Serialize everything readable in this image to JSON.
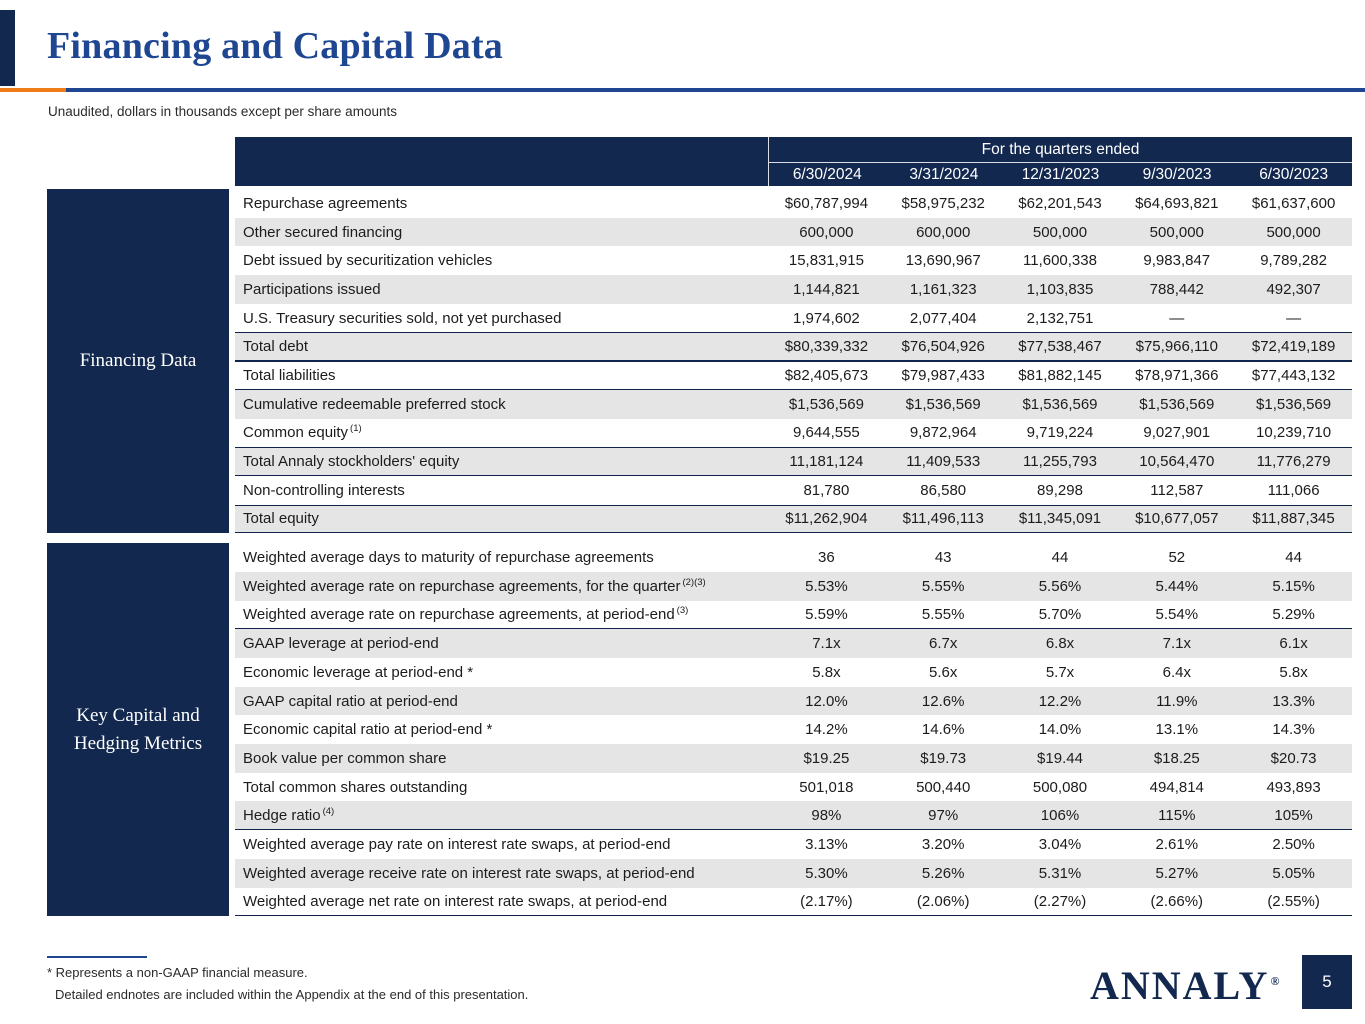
{
  "page": {
    "title": "Financing and Capital Data",
    "subtitle": "Unaudited, dollars in thousands except per share amounts"
  },
  "table": {
    "quarters_header": "For the quarters ended",
    "columns": [
      "6/30/2024",
      "3/31/2024",
      "12/31/2023",
      "9/30/2023",
      "6/30/2023"
    ],
    "sections": [
      {
        "label": "Financing Data",
        "rows": [
          {
            "label": "Repurchase agreements",
            "sup": "",
            "style": "",
            "values": [
              "$60,787,994",
              "$58,975,232",
              "$62,201,543",
              "$64,693,821",
              "$61,637,600"
            ]
          },
          {
            "label": "Other secured financing",
            "sup": "",
            "style": "",
            "values": [
              "600,000",
              "600,000",
              "500,000",
              "500,000",
              "500,000"
            ]
          },
          {
            "label": "Debt issued by securitization vehicles",
            "sup": "",
            "style": "",
            "values": [
              "15,831,915",
              "13,690,967",
              "11,600,338",
              "9,983,847",
              "9,789,282"
            ]
          },
          {
            "label": "Participations issued",
            "sup": "",
            "style": "",
            "values": [
              "1,144,821",
              "1,161,323",
              "1,103,835",
              "788,442",
              "492,307"
            ]
          },
          {
            "label": "U.S. Treasury securities sold, not yet purchased",
            "sup": "",
            "style": "",
            "values": [
              "1,974,602",
              "2,077,404",
              "2,132,751",
              "—",
              "—"
            ]
          },
          {
            "label": "Total debt",
            "sup": "",
            "style": "total",
            "values": [
              "$80,339,332",
              "$76,504,926",
              "$77,538,467",
              "$75,966,110",
              "$72,419,189"
            ]
          },
          {
            "label": "Total liabilities",
            "sup": "",
            "style": "total",
            "values": [
              "$82,405,673",
              "$79,987,433",
              "$81,882,145",
              "$78,971,366",
              "$77,443,132"
            ]
          },
          {
            "label": "Cumulative redeemable preferred stock",
            "sup": "",
            "style": "",
            "values": [
              "$1,536,569",
              "$1,536,569",
              "$1,536,569",
              "$1,536,569",
              "$1,536,569"
            ]
          },
          {
            "label": "Common equity",
            "sup": "(1)",
            "style": "",
            "values": [
              "9,644,555",
              "9,872,964",
              "9,719,224",
              "9,027,901",
              "10,239,710"
            ]
          },
          {
            "label": "Total Annaly stockholders' equity",
            "sup": "",
            "style": "total",
            "values": [
              "11,181,124",
              "11,409,533",
              "11,255,793",
              "10,564,470",
              "11,776,279"
            ]
          },
          {
            "label": "Non-controlling interests",
            "sup": "",
            "style": "",
            "values": [
              "81,780",
              "86,580",
              "89,298",
              "112,587",
              "111,066"
            ]
          },
          {
            "label": "Total equity",
            "sup": "",
            "style": "total",
            "values": [
              "$11,262,904",
              "$11,496,113",
              "$11,345,091",
              "$10,677,057",
              "$11,887,345"
            ]
          }
        ]
      },
      {
        "label": "Key Capital and Hedging Metrics",
        "rows": [
          {
            "label": "Weighted average days to maturity of repurchase agreements",
            "sup": "",
            "style": "",
            "values": [
              "36",
              "43",
              "44",
              "52",
              "44"
            ]
          },
          {
            "label": "Weighted average rate on repurchase agreements, for the quarter",
            "sup": "(2)(3)",
            "style": "",
            "values": [
              "5.53%",
              "5.55%",
              "5.56%",
              "5.44%",
              "5.15%"
            ]
          },
          {
            "label": "Weighted average rate on repurchase agreements, at period-end",
            "sup": "(3)",
            "style": "underline",
            "values": [
              "5.59%",
              "5.55%",
              "5.70%",
              "5.54%",
              "5.29%"
            ]
          },
          {
            "label": "GAAP leverage at period-end",
            "sup": "",
            "style": "",
            "values": [
              "7.1x",
              "6.7x",
              "6.8x",
              "7.1x",
              "6.1x"
            ]
          },
          {
            "label": "Economic leverage at period-end *",
            "sup": "",
            "style": "",
            "values": [
              "5.8x",
              "5.6x",
              "5.7x",
              "6.4x",
              "5.8x"
            ]
          },
          {
            "label": "GAAP capital ratio at period-end",
            "sup": "",
            "style": "",
            "values": [
              "12.0%",
              "12.6%",
              "12.2%",
              "11.9%",
              "13.3%"
            ]
          },
          {
            "label": "Economic capital ratio at period-end *",
            "sup": "",
            "style": "",
            "values": [
              "14.2%",
              "14.6%",
              "14.0%",
              "13.1%",
              "14.3%"
            ]
          },
          {
            "label": "Book value per common share",
            "sup": "",
            "style": "",
            "values": [
              "$19.25",
              "$19.73",
              "$19.44",
              "$18.25",
              "$20.73"
            ]
          },
          {
            "label": "Total common shares outstanding",
            "sup": "",
            "style": "",
            "values": [
              "501,018",
              "500,440",
              "500,080",
              "494,814",
              "493,893"
            ]
          },
          {
            "label": "Hedge ratio",
            "sup": "(4)",
            "style": "underline",
            "values": [
              "98%",
              "97%",
              "106%",
              "115%",
              "105%"
            ]
          },
          {
            "label": "Weighted average pay rate on interest rate swaps, at period-end",
            "sup": "",
            "style": "",
            "values": [
              "3.13%",
              "3.20%",
              "3.04%",
              "2.61%",
              "2.50%"
            ]
          },
          {
            "label": "Weighted average receive rate on interest rate swaps, at period-end",
            "sup": "",
            "style": "",
            "values": [
              "5.30%",
              "5.26%",
              "5.31%",
              "5.27%",
              "5.05%"
            ]
          },
          {
            "label": "Weighted average net rate on interest rate swaps, at period-end",
            "sup": "",
            "style": "underline",
            "values": [
              "(2.17%)",
              "(2.06%)",
              "(2.27%)",
              "(2.66%)",
              "(2.55%)"
            ]
          }
        ]
      }
    ]
  },
  "footer": {
    "note1": "* Represents a non-GAAP financial measure.",
    "note2": "Detailed endnotes are included within the Appendix at the end of this presentation.",
    "logo_text": "ANNALY",
    "logo_reg": "®",
    "page_number": "5"
  },
  "colors": {
    "navy": "#12284f",
    "accent_blue": "#1e4691",
    "accent_orange": "#ee7d17",
    "stripe_gray": "#e5e5e5"
  }
}
